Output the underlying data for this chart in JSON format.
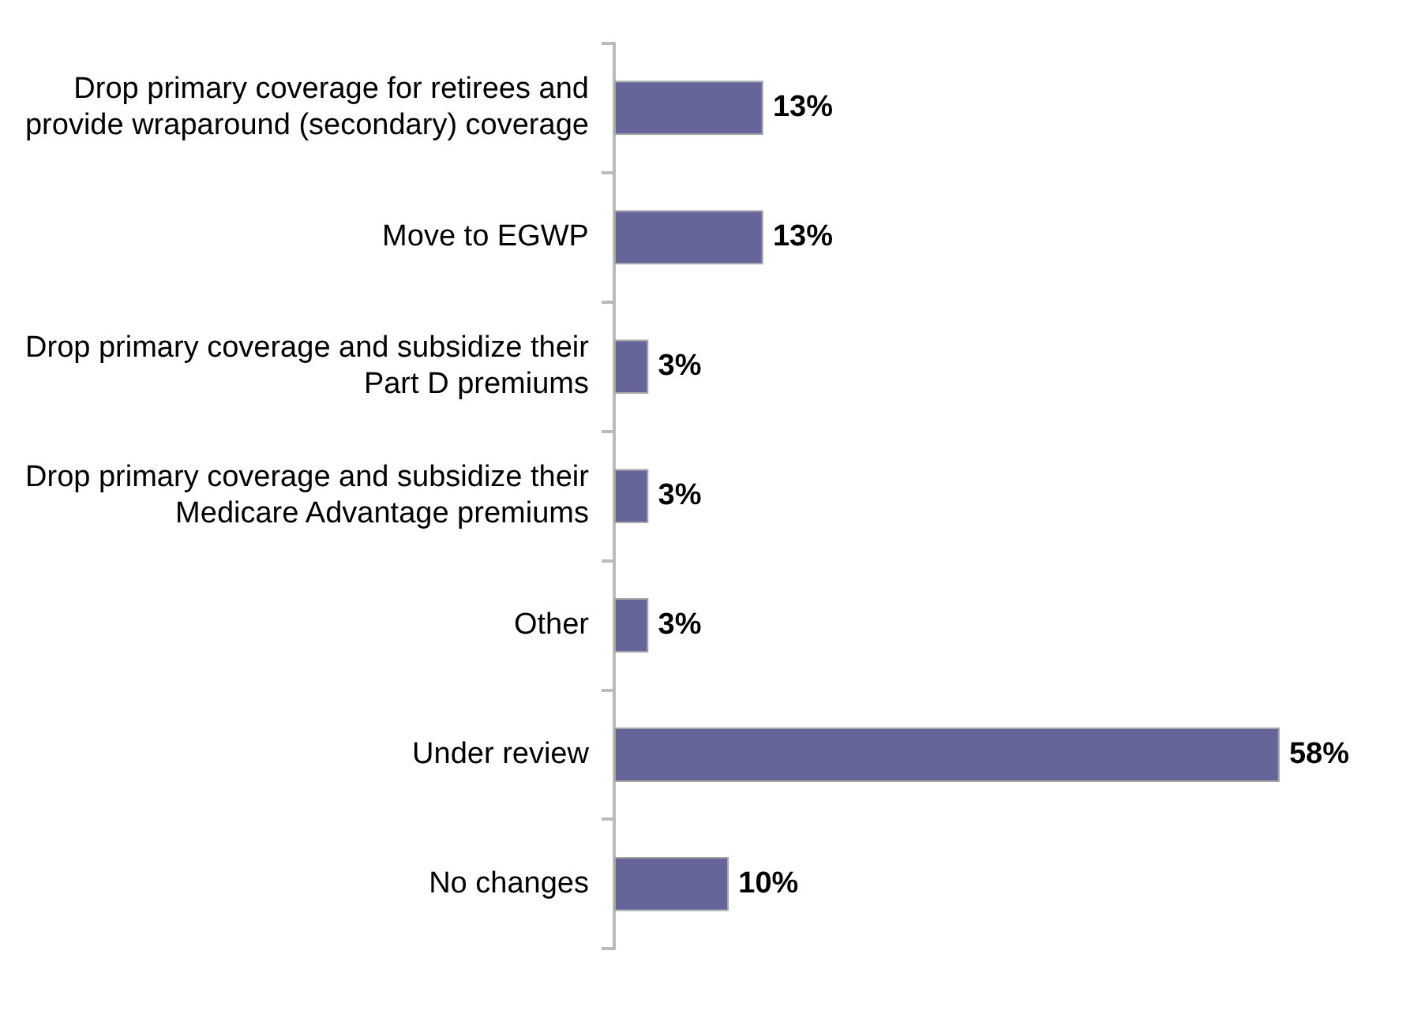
{
  "chart_data": {
    "type": "bar",
    "orientation": "horizontal",
    "categories": [
      "Drop primary coverage for retirees and provide wraparound (secondary) coverage",
      "Move to EGWP",
      "Drop primary coverage and subsidize their Part D premiums",
      "Drop primary coverage and subsidize their Medicare Advantage premiums",
      "Other",
      "Under review",
      "No changes"
    ],
    "values": [
      13,
      13,
      3,
      3,
      3,
      58,
      10
    ],
    "value_labels": [
      "13%",
      "13%",
      "3%",
      "3%",
      "3%",
      "58%",
      "10%"
    ],
    "color": "#65659a",
    "tick_labels": "y",
    "legend": false
  }
}
